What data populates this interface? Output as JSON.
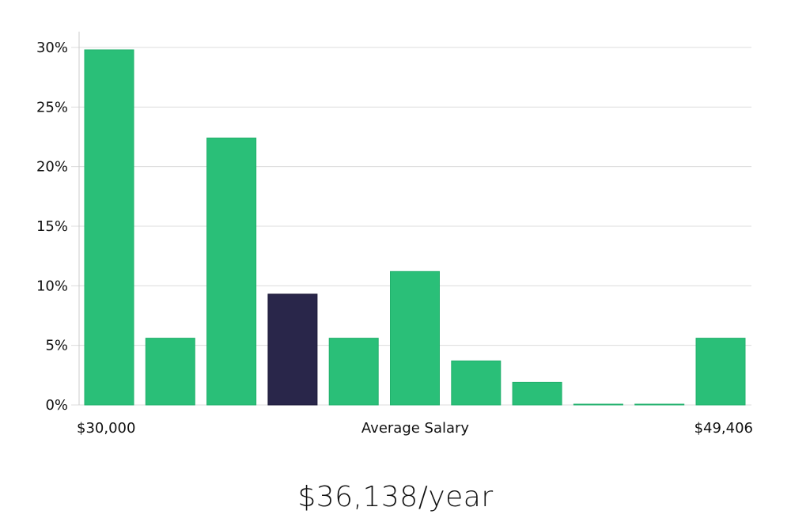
{
  "chart_data": {
    "type": "bar",
    "title": "",
    "ylabel": "",
    "ylim": [
      0,
      30
    ],
    "yticks": [
      "0%",
      "5%",
      "10%",
      "15%",
      "20%",
      "25%",
      "30%"
    ],
    "grid": true,
    "x_min_label": "$30,000",
    "x_max_label": "$49,406",
    "xlabel": "Average Salary",
    "values": [
      29.8,
      5.6,
      22.4,
      9.3,
      5.6,
      11.2,
      3.7,
      1.9,
      0,
      0,
      5.6
    ],
    "highlight_index": 3,
    "bar_color": "#2abf78",
    "highlight_color": "#29264a"
  },
  "salary_text": "$36,138/year"
}
